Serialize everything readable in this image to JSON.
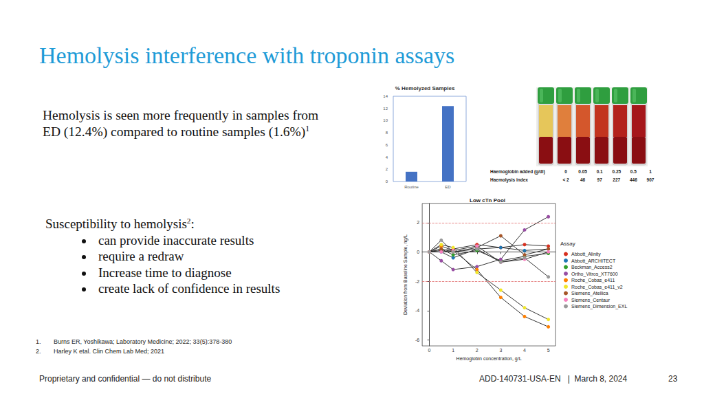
{
  "title": "Hemolysis interference with troponin assays",
  "paragraph": {
    "text": "Hemolysis is seen more frequently in samples from ED (12.4%) compared to routine samples (1.6%)",
    "ref": "1"
  },
  "list": {
    "heading": "Susceptibility to hemolysis",
    "ref": "2",
    "heading_end": ":",
    "items": [
      "can provide inaccurate results",
      "require a redraw",
      "Increase time to diagnose",
      "create lack of confidence in results"
    ]
  },
  "footnotes": [
    {
      "n": "1.",
      "text": "Burns ER, Yoshikawa; Laboratory Medicine; 2022; 33(5):378-380"
    },
    {
      "n": "2.",
      "text": "Harley K etal. Clin Chem Lab Med; 2021"
    }
  ],
  "footer": {
    "left": "Proprietary and confidential — do not distribute",
    "doc": "ADD-140731-USA-EN   |  March 8, 2024",
    "page": "23"
  },
  "tube_image": {
    "rows": [
      {
        "label": "Haemoglobin added (g/dl)",
        "values": [
          "0",
          "0.05",
          "0.1",
          "0.25",
          "0.5",
          "1"
        ]
      },
      {
        "label": "Haemolysis index",
        "values": [
          "< 2",
          "46",
          "97",
          "227",
          "446",
          "907"
        ]
      }
    ]
  },
  "chart_data": [
    {
      "type": "bar",
      "title": "% Hemolyzed Samples",
      "categories": [
        "Routine",
        "ED"
      ],
      "values": [
        1.6,
        12.4
      ],
      "color": "#4472c4",
      "ylim": [
        0,
        14
      ],
      "yticks": [
        0,
        2,
        4,
        6,
        8,
        10,
        12,
        14
      ],
      "grid": false
    },
    {
      "type": "line",
      "title": "Low cTn Pool",
      "x_label": "Hemoglobin concentration, g/L",
      "y_label": "Deviation from Baseline Sample, ng/L",
      "x": [
        0,
        0.5,
        1,
        2,
        3,
        4,
        5
      ],
      "xlim": [
        -0.3,
        5.3
      ],
      "xticks": [
        0,
        1,
        2,
        3,
        4,
        5
      ],
      "ylim": [
        -6.4,
        3.3
      ],
      "yticks": [
        -6,
        -4,
        -2,
        0,
        2
      ],
      "grid": false,
      "legend": "right",
      "legend_title": "Assay",
      "marker": "circle",
      "threshold_lines": {
        "values": [
          2,
          -2
        ],
        "color": "#e06666",
        "line_style": "dashed"
      },
      "series": [
        {
          "name": "Abbott_Alinity",
          "color": "#d7301f",
          "values": [
            0,
            0.1,
            0.2,
            0.5,
            0.3,
            0.5,
            0.4
          ]
        },
        {
          "name": "Abbott_ARCHITECT",
          "color": "#1f78b4",
          "values": [
            0,
            0.0,
            -0.4,
            0.2,
            0.3,
            0.1,
            0.2
          ]
        },
        {
          "name": "Beckman_Access2",
          "color": "#33a02c",
          "values": [
            0,
            0.2,
            -0.2,
            0.1,
            -0.6,
            -0.3,
            -0.1
          ]
        },
        {
          "name": "Ortho_Vitros_XT7600",
          "color": "#984ea3",
          "values": [
            0,
            -0.6,
            -1.2,
            -1.0,
            -0.5,
            1.5,
            2.4
          ]
        },
        {
          "name": "Roche_Cobas_e411",
          "color": "#ff7f00",
          "values": [
            0,
            0.4,
            0.1,
            -1.2,
            -3.1,
            -4.4,
            -5.1
          ]
        },
        {
          "name": "Roche_Cobas_e411_v2",
          "color": "#f0e62a",
          "values": [
            0,
            0.5,
            0.3,
            -1.4,
            -2.6,
            -3.8,
            -4.6
          ]
        },
        {
          "name": "Siemens_Atellica",
          "color": "#a65628",
          "values": [
            0,
            0.2,
            0.0,
            0.3,
            1.1,
            -0.2,
            0.2
          ]
        },
        {
          "name": "Siemens_Centaur",
          "color": "#f781bf",
          "values": [
            0,
            0.0,
            0.1,
            0.4,
            -0.7,
            -0.5,
            0.0
          ]
        },
        {
          "name": "Siemens_Dimension_EXL",
          "color": "#999999",
          "values": [
            0,
            0.8,
            0.0,
            0.2,
            -0.7,
            -0.4,
            -1.7
          ]
        }
      ]
    }
  ]
}
